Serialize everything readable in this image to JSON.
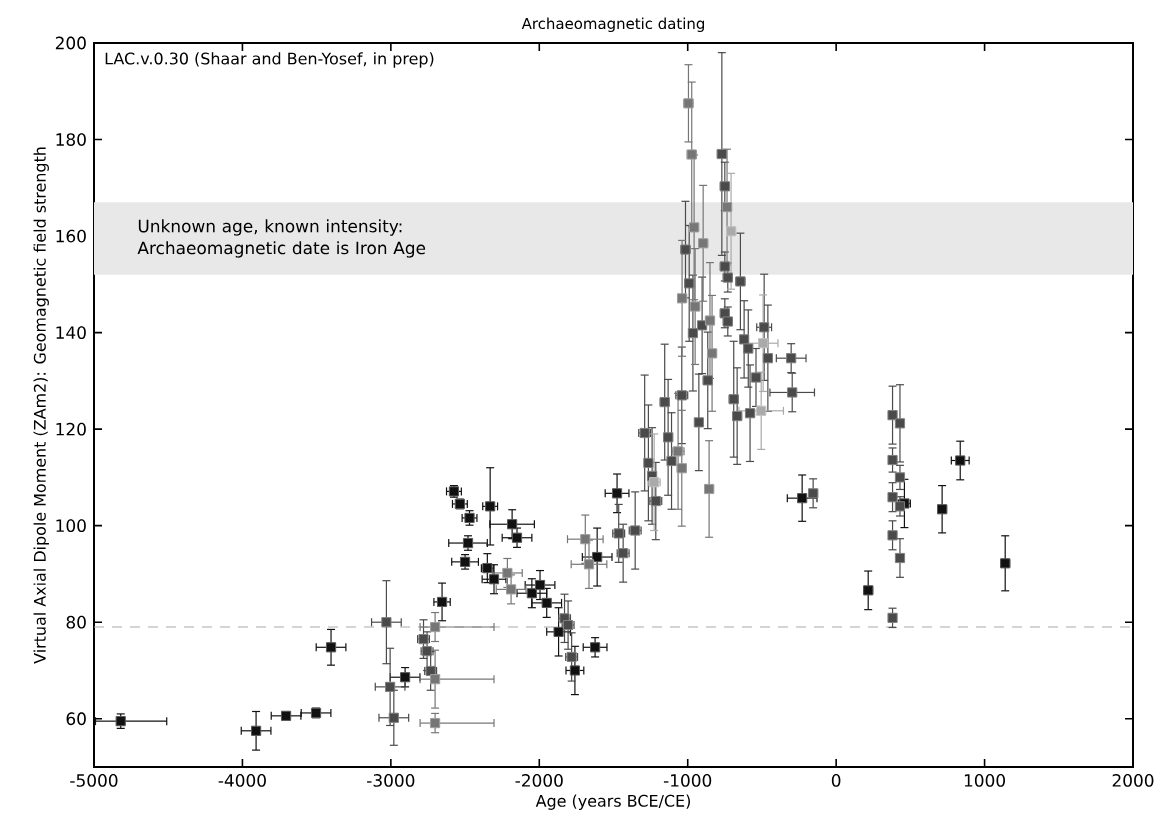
{
  "chart_data": {
    "type": "scatter",
    "title": "Archaeomagnetic dating",
    "xlabel": "Age (years BCE/CE)",
    "ylabel": "Virtual Axial Dipole Moment (ZAm2): Geomagnetic field strength",
    "xlim": [
      -5000,
      2000
    ],
    "xticks": [
      -5000,
      -4000,
      -3000,
      -2000,
      -1000,
      0,
      1000,
      2000
    ],
    "ylim": [
      50,
      200
    ],
    "yticks": [
      60,
      80,
      100,
      120,
      140,
      160,
      180,
      200
    ],
    "marker": "square",
    "grid": false,
    "annotations": [
      "LAC.v.0.30 (Shaar and Ben-Yosef, in prep)"
    ],
    "bands": [
      {
        "axis": "y",
        "from": 152,
        "to": 167,
        "label": "Unknown age, known intensity: Archaeomagnetic date is Iron Age",
        "color": "#e8e8e8"
      }
    ],
    "ref_lines": [
      {
        "axis": "y",
        "value": 79,
        "color": "#aaaaaa",
        "line_style": "dashed"
      }
    ],
    "series": [
      {
        "color": "#111111",
        "x": [
          -4820,
          -3908,
          -3706,
          -3504,
          -3403,
          -2904,
          -2655,
          -2575,
          -2535,
          -2470,
          -2331,
          -2480,
          -2500,
          -2350,
          -2305,
          -2183,
          -2150,
          -2050,
          -1995,
          -1950,
          -1870,
          -1760,
          -1624,
          -1610,
          -1476,
          -229,
          216,
          460,
          714,
          836,
          1139
        ],
        "values": [
          59.5,
          57.5,
          60.6,
          61.2,
          74.8,
          68.6,
          84.2,
          107.1,
          104.5,
          101.6,
          104,
          96.4,
          92.5,
          91.2,
          88.9,
          100.3,
          97.5,
          86,
          87.7,
          84,
          78,
          70,
          74.8,
          93.5,
          106.7,
          105.7,
          86.6,
          104.6,
          103.4,
          113.5,
          92.2
        ],
        "errors": [
          1.5,
          4,
          0.5,
          1,
          3.7,
          2,
          3.9,
          1.2,
          1,
          1.5,
          8,
          1.5,
          1.5,
          3,
          3,
          3,
          2,
          3,
          3,
          3,
          5,
          5,
          2,
          6,
          4,
          4.8,
          4,
          5,
          4.9,
          4,
          5.7
        ],
        "xerrors": [
          [
            -4990,
            -4510
          ],
          100,
          100,
          100,
          100,
          100,
          55,
          50,
          50,
          50,
          50,
          130,
          90,
          40,
          80,
          150,
          100,
          100,
          100,
          100,
          80,
          60,
          80,
          100,
          80,
          100,
          30,
          40,
          30,
          60,
          30
        ]
      },
      {
        "color": "#4a4a4a",
        "x": [
          -3030,
          -3005,
          -2980,
          -2780,
          -2756,
          -2732,
          -1830,
          -1806,
          -1782,
          -1465,
          -1435,
          -1354,
          -1290,
          -1265,
          -1240,
          -1215,
          -1155,
          -1132,
          -1109,
          -1040,
          -925,
          -690,
          -667,
          -580,
          -296,
          -155,
          -770,
          -750,
          -750,
          -730,
          -750,
          -730,
          -1015,
          -990,
          -965,
          -645,
          -903,
          -865,
          -620,
          -592,
          -485,
          -460,
          -303,
          -540,
          380,
          430,
          380,
          430,
          380,
          430,
          380,
          430,
          380
        ],
        "values": [
          80,
          66.6,
          60.2,
          76.5,
          74,
          69.9,
          80.8,
          79.4,
          72.8,
          98.4,
          94.3,
          99,
          119.2,
          113,
          110.3,
          105.1,
          125.6,
          118.3,
          113.4,
          127,
          121.4,
          126.2,
          122.7,
          123.3,
          127.6,
          106.7,
          177,
          170.3,
          153.7,
          151.4,
          144,
          142.3,
          157.2,
          150.2,
          139.9,
          150.6,
          141.5,
          130.1,
          138.6,
          136.7,
          141.1,
          134.7,
          134.7,
          130.7,
          122.9,
          121.2,
          113.6,
          110,
          105.9,
          104,
          98,
          93.3,
          80.9
        ],
        "errors": [
          8.6,
          8,
          5.7,
          4,
          4,
          4,
          5,
          5,
          5,
          6,
          6,
          8,
          12,
          12,
          10,
          8,
          12,
          12,
          10,
          10,
          10,
          12,
          10,
          10,
          4,
          3,
          21,
          5,
          3,
          3,
          3,
          3,
          10,
          12,
          12,
          10,
          10,
          10,
          8,
          8,
          11,
          11,
          3,
          6,
          6,
          8,
          2.5,
          2.5,
          3,
          2,
          3,
          4,
          2
        ],
        "xerrors": [
          100,
          100,
          100,
          40,
          40,
          40,
          40,
          40,
          40,
          40,
          40,
          40,
          40,
          25,
          25,
          40,
          30,
          30,
          20,
          40,
          20,
          30,
          30,
          30,
          150,
          30,
          30,
          30,
          30,
          30,
          30,
          30,
          30,
          30,
          20,
          30,
          20,
          30,
          12,
          12,
          50,
          12,
          100,
          25,
          15,
          15,
          15,
          15,
          15,
          15,
          15,
          15,
          15
        ]
      },
      {
        "color": "#767676",
        "x": [
          -2702,
          -2702,
          -2702,
          -2215,
          -2190,
          -1690,
          -1665,
          -1065,
          -1040,
          -856,
          -995,
          -973,
          -957,
          -896,
          -735,
          -1038,
          -950,
          -850,
          -836
        ],
        "values": [
          79,
          68.2,
          59.1,
          90.2,
          86.8,
          97.2,
          92,
          115.4,
          111.9,
          107.6,
          187.5,
          176.9,
          161.8,
          158.5,
          166,
          147.1,
          145.4,
          142.5,
          135.7
        ],
        "errors": [
          3,
          6,
          2,
          3,
          3,
          5,
          5,
          12,
          12,
          10,
          8,
          15,
          15,
          12,
          12,
          12,
          12,
          12,
          12
        ],
        "xerrors": [
          [
            -2803,
            -2305
          ],
          [
            -2803,
            -2305
          ],
          [
            -2803,
            -2305
          ],
          100,
          100,
          120,
          120,
          40,
          30,
          30,
          30,
          30,
          30,
          30,
          30,
          30,
          30,
          30,
          30
        ]
      },
      {
        "color": "#aaaaaa",
        "x": [
          -1226,
          -505,
          -708,
          -492
        ],
        "values": [
          109,
          123.8,
          161,
          137.8
        ],
        "errors": [
          10,
          8,
          12,
          10
        ],
        "xerrors": [
          40,
          150,
          30,
          100
        ]
      }
    ]
  }
}
